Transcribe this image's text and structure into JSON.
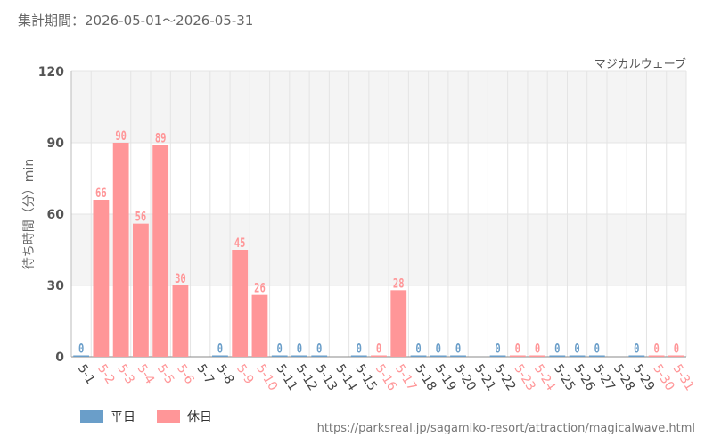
{
  "header": {
    "period": "集計期間：2026-05-01～2026-05-31",
    "attraction": "マジカルウェーブ"
  },
  "legend": {
    "weekday": "平日",
    "holiday": "休日"
  },
  "footer": {
    "source": "https://parksreal.jp/sagamiko-resort/attraction/magicalwave.html"
  },
  "colors": {
    "weekday": "#6a9ec9",
    "holiday": "#ff9698",
    "plot_band": "#f4f4f4",
    "grid": "#e4e4e4"
  },
  "chart_data": {
    "type": "bar",
    "ylabel": "待ち時間（分）min",
    "ylim": [
      0,
      120
    ],
    "yticks": [
      0,
      30,
      60,
      90,
      120
    ],
    "categories": [
      "5-1",
      "5-2",
      "5-3",
      "5-4",
      "5-5",
      "5-6",
      "5-7",
      "5-8",
      "5-9",
      "5-10",
      "5-11",
      "5-12",
      "5-13",
      "5-14",
      "5-15",
      "5-16",
      "5-17",
      "5-18",
      "5-19",
      "5-20",
      "5-21",
      "5-22",
      "5-23",
      "5-24",
      "5-25",
      "5-26",
      "5-27",
      "5-28",
      "5-29",
      "5-30",
      "5-31"
    ],
    "values": [
      0,
      66,
      90,
      56,
      89,
      30,
      null,
      0,
      45,
      26,
      0,
      0,
      0,
      null,
      0,
      0,
      28,
      0,
      0,
      0,
      null,
      0,
      0,
      0,
      0,
      0,
      0,
      null,
      0,
      0,
      0
    ],
    "day_type": [
      "weekday",
      "holiday",
      "holiday",
      "holiday",
      "holiday",
      "holiday",
      "weekday",
      "weekday",
      "holiday",
      "holiday",
      "weekday",
      "weekday",
      "weekday",
      "weekday",
      "weekday",
      "holiday",
      "holiday",
      "weekday",
      "weekday",
      "weekday",
      "weekday",
      "weekday",
      "holiday",
      "holiday",
      "weekday",
      "weekday",
      "weekday",
      "weekday",
      "weekday",
      "holiday",
      "holiday"
    ],
    "grid": true,
    "legend_position": "bottom-left"
  }
}
